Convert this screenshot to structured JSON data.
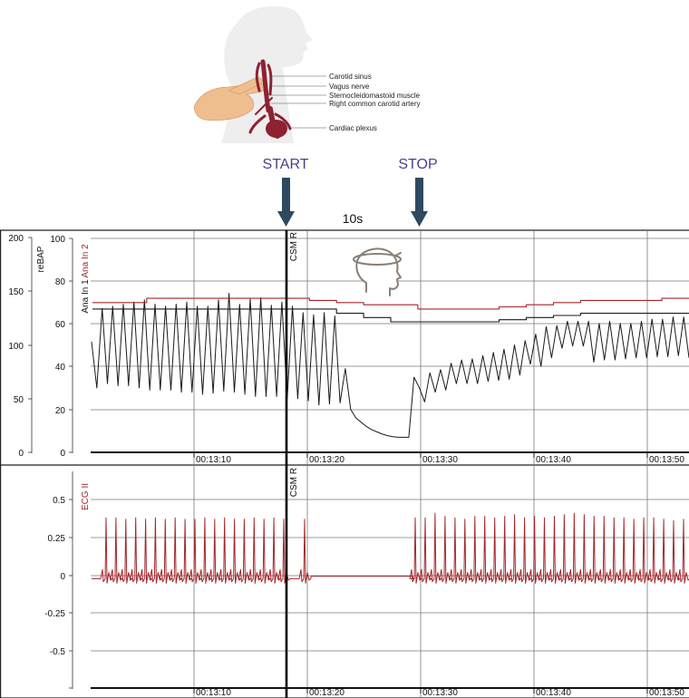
{
  "illustration": {
    "labels": [
      "Carotid sinus",
      "Vagus nerve",
      "Sternocleidomastoid muscle",
      "Right common carotid artery",
      "Cardiac plexus"
    ]
  },
  "markers": {
    "start": "START",
    "stop": "STOP",
    "duration": "10s",
    "event": "CSM R"
  },
  "colors": {
    "arrow": "#2e4a5f",
    "marker_text": "#4a3e8c",
    "ecg": "#a3262a",
    "bp": "#1a1a1a",
    "grid": "#7a7a7a",
    "ana2": "#a3262a"
  },
  "chart_data": [
    {
      "type": "line",
      "title": "",
      "panel": "top",
      "left_axis": {
        "label": "reBAP",
        "ticks": [
          0,
          50,
          100,
          150,
          200
        ],
        "ylim": [
          0,
          200
        ]
      },
      "right_axis": {
        "label_1": "Ana In 1",
        "label_2": "Ana In 2",
        "ticks": [
          0,
          20,
          40,
          60,
          80,
          100
        ],
        "ylim": [
          0,
          100
        ]
      },
      "x_ticks": [
        "00:13:10",
        "00:13:20",
        "00:13:30",
        "00:13:40",
        "00:13:50"
      ],
      "event_label": "CSM R",
      "series": [
        {
          "values": [
            103,
            60,
            134,
            64,
            136,
            62,
            138,
            62,
            140,
            60,
            142,
            58,
            138,
            58,
            136,
            58,
            138,
            56,
            140,
            56,
            136,
            54,
            136,
            55,
            142,
            57,
            148,
            56,
            138,
            54,
            143,
            52,
            144,
            52,
            137,
            52,
            140,
            50,
            136,
            50,
            130,
            48,
            128,
            44,
            130,
            45,
            127,
            46,
            78,
            40,
            32,
            28,
            24,
            21,
            19,
            17,
            15.5,
            14.5,
            14,
            14,
            14,
            70,
            60,
            47,
            74,
            56,
            77,
            58,
            83,
            64,
            86,
            64,
            87,
            64,
            90,
            66,
            93,
            67,
            96,
            68,
            100,
            72,
            104,
            82,
            110,
            80,
            117,
            88,
            118,
            97,
            122,
            99,
            122,
            99,
            122,
            84,
            120,
            86,
            122,
            86,
            120,
            87,
            120,
            88,
            122,
            88,
            124,
            89,
            124,
            89,
            126,
            90,
            126,
            88
          ]
        },
        {
          "values": [
            70,
            70,
            72,
            72,
            72,
            72,
            72,
            72,
            71,
            70,
            69,
            69,
            67,
            67,
            67,
            68,
            69,
            70,
            71,
            71,
            71,
            72
          ]
        },
        {
          "values": [
            67,
            67,
            67,
            67,
            67,
            67,
            67,
            67,
            67,
            65,
            63,
            61,
            61,
            61,
            61,
            62,
            63,
            64,
            65,
            65,
            65,
            65
          ]
        }
      ]
    },
    {
      "type": "line",
      "title": "",
      "panel": "bottom",
      "y_axis": {
        "label": "ECG II",
        "ticks": [
          0.5,
          0.25,
          0,
          -0.25,
          -0.5
        ],
        "ylim": [
          -0.72,
          0.72
        ]
      },
      "x_ticks": [
        "00:13:10",
        "00:13:20",
        "00:13:30",
        "00:13:40",
        "00:13:50"
      ],
      "event_label": "CSM R",
      "series": [
        {
          "r_peaks": [
            0.38,
            0.38,
            0.37,
            0.38,
            0.37,
            0.38,
            0.37,
            0.38,
            0.37,
            0.37,
            0.38,
            0.37,
            0.38,
            0.37,
            0.37,
            0.38,
            0.37,
            0.38,
            0.37,
            0.37,
            0.38,
            0.38,
            0.41,
            0.39,
            0.38,
            0.37,
            0.39,
            0.39,
            0.38,
            0.39,
            0.4,
            0.38,
            0.39,
            0.38,
            0.39,
            0.4,
            0.41,
            0.4,
            0.39,
            0.39,
            0.38,
            0.38,
            0.37,
            0.38,
            0.38,
            0.37,
            0.36,
            0.37
          ],
          "baseline": -0.02,
          "asystole_baseline": -0.01
        }
      ]
    }
  ]
}
